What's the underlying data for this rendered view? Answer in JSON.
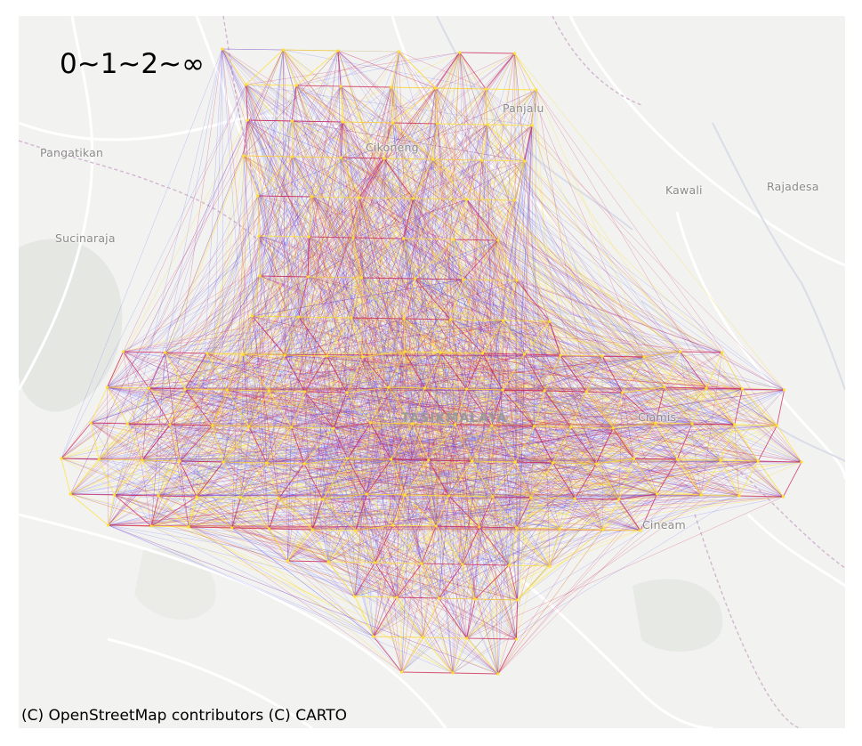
{
  "legend": {
    "text": "0~1~2~∞"
  },
  "attribution": "(C) OpenStreetMap contributors (C) CARTO",
  "basemap": {
    "style": "light-gray",
    "place_labels": [
      "Pangatikan",
      "Sucinaraja",
      "Kawali",
      "Rajadesa",
      "Panjalu",
      "Cineam"
    ],
    "city_labels": [
      "TASIKMALAYA",
      "Cikoneng",
      "Ciamis"
    ]
  },
  "network": {
    "edge_color_scale": [
      "#4a4aff",
      "#cc1f5a",
      "#ffe033"
    ],
    "node_color": "#ffe033"
  },
  "colors": {
    "background": "#f2f2f0",
    "water": "#d9dde8",
    "roads": "#ffffff",
    "boundaries": "#c9a6c8",
    "low": "#4a4aff",
    "mid": "#cc1f5a",
    "high": "#ffe033"
  }
}
